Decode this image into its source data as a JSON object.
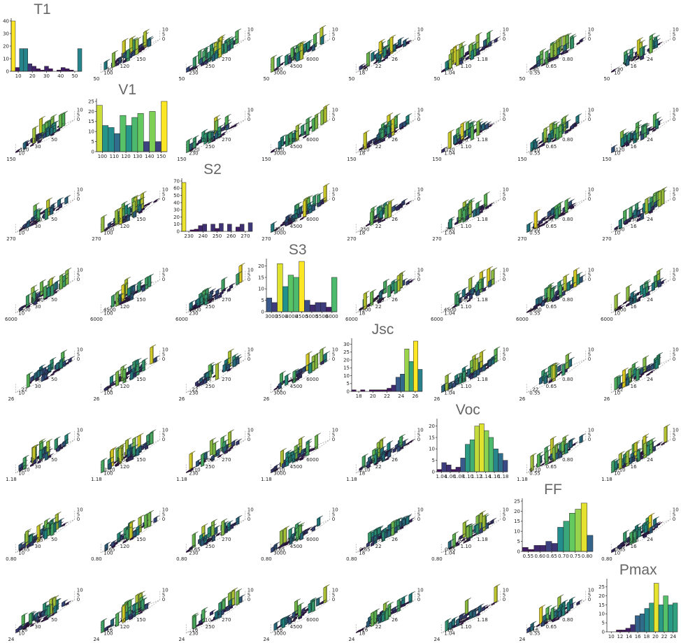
{
  "colormap": [
    "#440154",
    "#3b528b",
    "#21918c",
    "#5ec962",
    "#fde725"
  ],
  "colors": {
    "bar_outline": "#222222",
    "title": "#666666"
  },
  "variables": [
    {
      "name": "T1",
      "lim": [
        10,
        52
      ],
      "ticks": [
        "10",
        "20",
        "30",
        "40",
        "50"
      ]
    },
    {
      "name": "V1",
      "lim": [
        100,
        155
      ],
      "ticks": [
        "100",
        "110",
        "120",
        "130",
        "140",
        "150"
      ]
    },
    {
      "name": "S2",
      "lim": [
        228,
        272
      ],
      "ticks": [
        "230",
        "240",
        "250",
        "260",
        "270"
      ]
    },
    {
      "name": "S3",
      "lim": [
        3000,
        6200
      ],
      "ticks": [
        "3000",
        "3500",
        "4000",
        "4500",
        "5000",
        "5500",
        "6000"
      ]
    },
    {
      "name": "Jsc",
      "lim": [
        17,
        26
      ],
      "ticks": [
        "18",
        "20",
        "22",
        "24",
        "26"
      ]
    },
    {
      "name": "Voc",
      "lim": [
        1.03,
        1.19
      ],
      "ticks": [
        "1.04",
        "1.06",
        "1.08",
        "1.10",
        "1.12",
        "1.14",
        "1.16",
        "1.18"
      ]
    },
    {
      "name": "FF",
      "lim": [
        0.53,
        0.83
      ],
      "ticks": [
        "0.55",
        "0.60",
        "0.65",
        "0.70",
        "0.75",
        "0.80"
      ]
    },
    {
      "name": "Pmax",
      "lim": [
        9.5,
        25
      ],
      "ticks": [
        "10",
        "12",
        "14",
        "16",
        "18",
        "20",
        "22",
        "24"
      ]
    }
  ],
  "chart_data": [
    {
      "type": "bar",
      "title": "T1",
      "categories": [
        "10",
        "12.5",
        "15",
        "17.5",
        "20",
        "22.5",
        "25",
        "27.5",
        "30",
        "32.5",
        "35",
        "37.5",
        "40",
        "42.5",
        "45",
        "47.5",
        "50"
      ],
      "values": [
        40,
        3,
        18,
        18,
        6,
        4,
        2,
        1,
        4,
        2,
        0,
        1,
        3,
        2,
        1,
        0,
        18
      ],
      "yticks": [
        "0",
        "10",
        "20",
        "30",
        "40"
      ],
      "ylim": [
        0,
        40
      ],
      "grid": false
    },
    {
      "type": "bar",
      "title": "V1",
      "categories": [
        "100",
        "105",
        "110",
        "115",
        "120",
        "125",
        "130",
        "135",
        "140",
        "145",
        "150",
        "155"
      ],
      "values": [
        23,
        13,
        12,
        9,
        18,
        13,
        17,
        19,
        5,
        20,
        5,
        25
      ],
      "yticks": [
        "0",
        "5",
        "10",
        "15",
        "20",
        "25"
      ],
      "ylim": [
        0,
        25
      ],
      "grid": false
    },
    {
      "type": "bar",
      "title": "S2",
      "categories": [
        "230",
        "232.5",
        "235",
        "237.5",
        "240",
        "242.5",
        "245",
        "247.5",
        "250",
        "252.5",
        "255",
        "257.5",
        "260",
        "262.5",
        "265",
        "267.5",
        "270"
      ],
      "values": [
        68,
        0,
        2,
        3,
        8,
        10,
        0,
        10,
        4,
        11,
        0,
        10,
        0,
        6,
        10,
        0,
        12
      ],
      "yticks": [
        "0",
        "10",
        "20",
        "30",
        "40",
        "50",
        "60",
        "70"
      ],
      "ylim": [
        0,
        70
      ],
      "grid": false
    },
    {
      "type": "bar",
      "title": "S3",
      "categories": [
        "3000",
        "3250",
        "3500",
        "3750",
        "4000",
        "4250",
        "4500",
        "4750",
        "5000",
        "5250",
        "5500",
        "5750",
        "6000"
      ],
      "values": [
        6,
        4,
        21,
        11,
        16,
        15,
        22,
        5,
        3,
        4,
        4,
        2,
        15
      ],
      "yticks": [
        "0",
        "5",
        "10",
        "15",
        "20"
      ],
      "ylim": [
        0,
        22
      ],
      "grid": false
    },
    {
      "type": "bar",
      "title": "Jsc",
      "categories": [
        "18",
        "18.5",
        "19",
        "19.5",
        "20",
        "20.5",
        "21",
        "21.5",
        "22",
        "22.5",
        "23",
        "23.5",
        "24",
        "24.5",
        "25",
        "25.5"
      ],
      "values": [
        1,
        0,
        1,
        0,
        1,
        1,
        1,
        1,
        2,
        4,
        9,
        11,
        27,
        19,
        32,
        14
      ],
      "yticks": [
        "0",
        "5",
        "10",
        "15",
        "20",
        "25",
        "30"
      ],
      "ylim": [
        0,
        32
      ],
      "grid": false
    },
    {
      "type": "bar",
      "title": "Voc",
      "categories": [
        "1.04",
        "1.05",
        "1.06",
        "1.07",
        "1.08",
        "1.09",
        "1.10",
        "1.11",
        "1.12",
        "1.13",
        "1.14",
        "1.15",
        "1.16",
        "1.17",
        "1.18"
      ],
      "values": [
        1,
        4,
        3,
        1,
        2,
        6,
        12,
        14,
        20,
        21,
        18,
        15,
        10,
        8,
        5
      ],
      "yticks": [
        "0",
        "5",
        "10",
        "15",
        "20"
      ],
      "ylim": [
        0,
        22
      ],
      "grid": false
    },
    {
      "type": "bar",
      "title": "FF",
      "categories": [
        "0.55",
        "0.575",
        "0.60",
        "0.625",
        "0.65",
        "0.675",
        "0.70",
        "0.725",
        "0.75",
        "0.775",
        "0.80",
        "0.825"
      ],
      "values": [
        2,
        1,
        3,
        3,
        5,
        4,
        12,
        15,
        19,
        21,
        24,
        8
      ],
      "yticks": [
        "0",
        "5",
        "10",
        "15",
        "20",
        "25"
      ],
      "ylim": [
        0,
        25
      ],
      "grid": false
    },
    {
      "type": "bar",
      "title": "Pmax",
      "categories": [
        "10",
        "11",
        "12",
        "13",
        "14",
        "15",
        "16",
        "17",
        "18",
        "19",
        "20",
        "21",
        "22",
        "23",
        "24"
      ],
      "values": [
        0,
        0,
        1,
        1,
        2,
        4,
        9,
        10,
        13,
        16,
        27,
        15,
        20,
        15,
        16
      ],
      "yticks": [
        "0",
        "5",
        "10",
        "15",
        "20",
        "25"
      ],
      "ylim": [
        0,
        28
      ],
      "grid": false
    }
  ]
}
